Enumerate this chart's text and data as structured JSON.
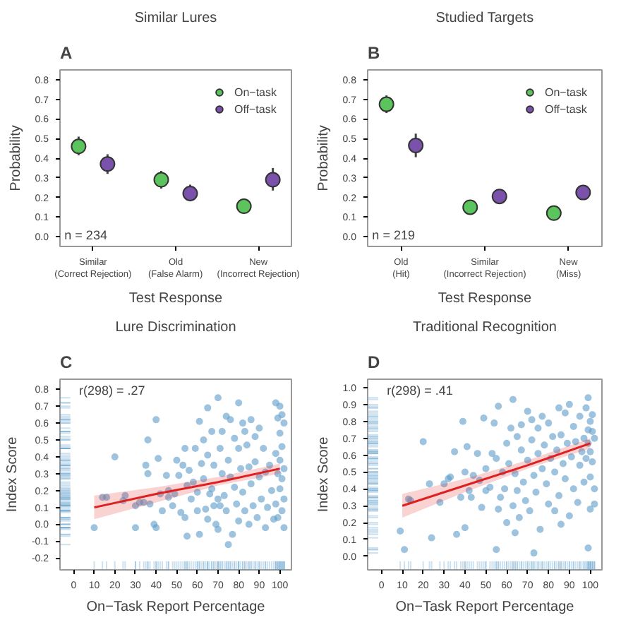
{
  "chart_data": [
    {
      "type": "scatter",
      "title": "Similar Lures",
      "xlabel": "Test Response",
      "ylabel": "Probability",
      "annotations": [
        "A",
        "n = 234"
      ],
      "categories": [
        "Similar\n(Correct Rejection)",
        "Old\n(False Alarm)",
        "New\n(Incorrect Rejection)"
      ],
      "ylim": [
        -0.05,
        0.85
      ],
      "yticks": [
        {
          "value": 0,
          "label": "0.0"
        },
        0.1,
        0.2,
        0.3,
        0.4,
        0.5,
        0.6,
        0.7,
        0.8
      ],
      "legend": "top right",
      "marker": "circle",
      "series": [
        {
          "name": "On−task",
          "color": "#5cc45c",
          "values": [
            0.46,
            0.29,
            0.155
          ],
          "errors": [
            [
              0.415,
              0.51
            ],
            [
              0.245,
              0.335
            ],
            [
              0.125,
              0.19
            ]
          ]
        },
        {
          "name": "Off−task",
          "color": "#7b52ab",
          "values": [
            0.37,
            0.22,
            0.29
          ],
          "errors": [
            [
              0.32,
              0.42
            ],
            [
              0.18,
              0.265
            ],
            [
              0.235,
              0.35
            ]
          ]
        }
      ]
    },
    {
      "type": "scatter",
      "title": "Studied Targets",
      "xlabel": "Test Response",
      "ylabel": "Probability",
      "annotations": [
        "B",
        "n = 219"
      ],
      "categories": [
        "Old\n(Hit)",
        "Similar\n(Incorrect Rejection)",
        "New\n(Miss)"
      ],
      "ylim": [
        -0.05,
        0.85
      ],
      "yticks": [
        {
          "value": 0,
          "label": "0.0"
        },
        0.1,
        0.2,
        0.3,
        0.4,
        0.5,
        0.6,
        0.7,
        0.8
      ],
      "legend": "top right",
      "marker": "circle",
      "series": [
        {
          "name": "On−task",
          "color": "#5cc45c",
          "values": [
            0.675,
            0.15,
            0.12
          ],
          "errors": [
            [
              0.63,
              0.72
            ],
            null,
            null
          ]
        },
        {
          "name": "Off−task",
          "color": "#7b52ab",
          "values": [
            0.465,
            0.205,
            0.225
          ],
          "errors": [
            [
              0.405,
              0.525
            ],
            [
              0.17,
              0.24
            ],
            null
          ]
        }
      ]
    },
    {
      "type": "scatter",
      "title": "Lure Discrimination",
      "xlabel": "On−Task Report Percentage",
      "ylabel": "Index Score",
      "annotations": [
        "C",
        "r(298) = .27"
      ],
      "xlim": [
        -6.6,
        105.6
      ],
      "xticks": [
        0,
        10,
        20,
        30,
        40,
        50,
        60,
        70,
        80,
        90,
        100
      ],
      "ylim": [
        -0.27,
        0.86
      ],
      "yticks": [
        {
          "value": -0.2,
          "label": "-0.2"
        },
        {
          "value": -0.1,
          "label": "-0.1"
        },
        {
          "value": 0,
          "label": "0.0"
        },
        0.1,
        0.2,
        0.3,
        0.4,
        0.5,
        0.6,
        0.7,
        0.8
      ],
      "series": [
        {
          "marker": "circle",
          "color": "#5b9bc9",
          "x": [
            10,
            14,
            16,
            20,
            24,
            25,
            30,
            30,
            32,
            34,
            35,
            36,
            36,
            37,
            39,
            40,
            40,
            41,
            42,
            43,
            45,
            46,
            46,
            48,
            49,
            50,
            51,
            52,
            53,
            54,
            54,
            55,
            55,
            56,
            57,
            58,
            59,
            60,
            60,
            61,
            61,
            62,
            63,
            63,
            64,
            65,
            65,
            65,
            66,
            67,
            67,
            68,
            68,
            69,
            70,
            70,
            70,
            71,
            71,
            72,
            72,
            73,
            74,
            74,
            75,
            75,
            76,
            76,
            77,
            78,
            78,
            79,
            80,
            80,
            80,
            81,
            82,
            82,
            83,
            83,
            84,
            85,
            85,
            86,
            86,
            87,
            88,
            88,
            89,
            90,
            90,
            91,
            92,
            93,
            93,
            94,
            95,
            96,
            97,
            98,
            98,
            98,
            99,
            99,
            99,
            100,
            100,
            100,
            100,
            101,
            101,
            101,
            101,
            102,
            102,
            102,
            102
          ],
          "values": [
            -0.02,
            0.16,
            0.16,
            0.4,
            0.14,
            0.17,
            0.11,
            -0.02,
            0.13,
            0.13,
            0.35,
            0.3,
            0.5,
            0.12,
            0.0,
            0.62,
            -0.02,
            0.39,
            0.18,
            0.08,
            0.29,
            0.2,
            0.16,
            0.11,
            0.18,
            0.38,
            0.29,
            0.07,
            0.35,
            0.45,
            0.04,
            0.23,
            -0.07,
            0.32,
            0.15,
            0.25,
            0.45,
            0.19,
            0.08,
            0.61,
            -0.06,
            0.36,
            0.27,
            0.5,
            0.09,
            0.69,
            0.41,
            0.03,
            0.18,
            0.55,
            0.21,
            0.11,
            0.35,
            0.0,
            0.75,
            0.15,
            -0.03,
            0.45,
            0.11,
            0.55,
            0.3,
            0.17,
            0.64,
            0.08,
            -0.12,
            0.38,
            0.62,
            0.28,
            -0.06,
            0.51,
            0.22,
            0.12,
            0.72,
            0.45,
            0.02,
            0.33,
            0.6,
            0.19,
            0.55,
            0.08,
            0.47,
            0.34,
            0.0,
            0.62,
            0.24,
            0.11,
            0.52,
            0.37,
            0.04,
            0.57,
            0.28,
            0.15,
            0.45,
            0.31,
            -0.02,
            0.1,
            0.35,
            0.2,
            0.03,
            0.72,
            0.42,
            0.12,
            0.63,
            0.3,
            0.04,
            0.7,
            0.54,
            0.38,
            0.21,
            0.65,
            0.46,
            0.27,
            0.08,
            0.6,
            0.33,
            0.15,
            -0.02
          ]
        },
        {
          "type": "line",
          "color": "#e02020",
          "x": [
            10,
            40,
            70,
            100
          ],
          "values": [
            0.1,
            0.18,
            0.25,
            0.33
          ],
          "lower": [
            0.03,
            0.13,
            0.23,
            0.3
          ],
          "upper": [
            0.17,
            0.22,
            0.28,
            0.36
          ]
        }
      ]
    },
    {
      "type": "scatter",
      "title": "Traditional Recognition",
      "xlabel": "On−Task Report Percentage",
      "ylabel": "Index Score",
      "annotations": [
        "D",
        "r(298) = .41"
      ],
      "xlim": [
        -6.6,
        105.6
      ],
      "xticks": [
        0,
        10,
        20,
        30,
        40,
        50,
        60,
        70,
        80,
        90,
        100
      ],
      "ylim": [
        -0.08,
        1.05
      ],
      "yticks": [
        {
          "value": 0,
          "label": "0.0"
        },
        0.1,
        0.2,
        0.3,
        0.4,
        0.5,
        0.6,
        0.7,
        0.8,
        0.9,
        {
          "value": 1,
          "label": "1.0"
        }
      ],
      "series": [
        {
          "marker": "circle",
          "color": "#5b9bc9",
          "x": [
            9,
            11,
            13,
            14,
            20,
            23,
            24,
            28,
            30,
            32,
            33,
            35,
            36,
            38,
            39,
            40,
            40,
            41,
            42,
            43,
            44,
            46,
            47,
            48,
            49,
            50,
            50,
            52,
            53,
            54,
            55,
            55,
            56,
            56,
            57,
            58,
            59,
            60,
            60,
            61,
            62,
            63,
            63,
            64,
            64,
            65,
            65,
            66,
            67,
            67,
            68,
            69,
            70,
            70,
            71,
            72,
            72,
            73,
            73,
            74,
            75,
            75,
            76,
            77,
            77,
            78,
            79,
            80,
            80,
            81,
            82,
            83,
            83,
            84,
            85,
            85,
            86,
            86,
            87,
            88,
            88,
            89,
            90,
            90,
            91,
            92,
            92,
            93,
            94,
            95,
            95,
            96,
            97,
            97,
            98,
            98,
            99,
            99,
            99,
            99,
            100,
            100,
            100,
            100,
            101,
            101,
            101,
            102,
            102,
            102
          ],
          "values": [
            0.15,
            0.04,
            0.34,
            0.33,
            0.68,
            0.43,
            0.11,
            0.32,
            0.43,
            0.46,
            0.47,
            0.62,
            0.13,
            0.35,
            0.8,
            0.5,
            0.17,
            0.65,
            0.39,
            0.35,
            0.48,
            0.61,
            0.45,
            0.29,
            0.82,
            0.39,
            0.52,
            0.41,
            0.61,
            0.79,
            0.04,
            0.58,
            0.28,
            0.89,
            0.35,
            0.5,
            0.4,
            0.67,
            0.2,
            0.55,
            0.76,
            0.3,
            0.93,
            0.14,
            0.49,
            0.71,
            0.39,
            0.23,
            0.63,
            0.78,
            0.44,
            0.33,
            0.86,
            0.57,
            0.27,
            0.81,
            0.69,
            0.02,
            0.48,
            0.38,
            0.76,
            0.61,
            0.16,
            0.52,
            0.83,
            0.66,
            0.43,
            0.79,
            0.31,
            0.58,
            0.71,
            0.5,
            0.27,
            0.63,
            0.88,
            0.36,
            0.19,
            0.72,
            0.55,
            0.85,
            0.46,
            0.67,
            0.9,
            0.24,
            0.59,
            0.77,
            0.4,
            0.68,
            0.32,
            0.83,
            0.54,
            0.62,
            0.7,
            0.44,
            0.88,
            0.58,
            0.05,
            0.94,
            0.75,
            0.67,
            0.8,
            0.47,
            0.62,
            0.28,
            0.74,
            0.84,
            0.56,
            0.7,
            0.31,
            0.4
          ]
        },
        {
          "type": "line",
          "color": "#e02020",
          "x": [
            10,
            40,
            70,
            100
          ],
          "values": [
            0.3,
            0.42,
            0.54,
            0.67
          ],
          "lower": [
            0.23,
            0.38,
            0.52,
            0.64
          ],
          "upper": [
            0.37,
            0.46,
            0.57,
            0.7
          ]
        }
      ]
    }
  ]
}
